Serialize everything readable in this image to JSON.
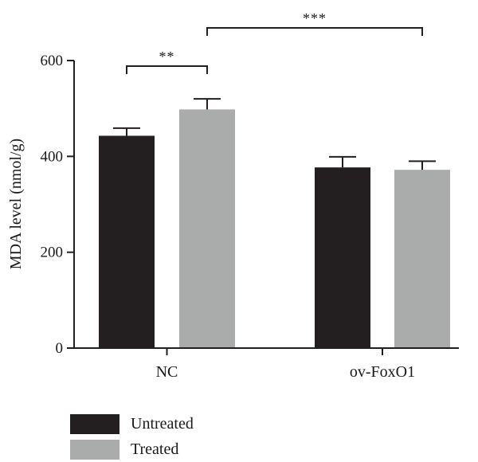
{
  "chart_data": {
    "type": "bar",
    "categories": [
      "NC",
      "ov-FoxO1"
    ],
    "series": [
      {
        "name": "Untreated",
        "values": [
          443,
          377
        ],
        "errors": [
          16,
          22
        ],
        "color": "#231f20"
      },
      {
        "name": "Treated",
        "values": [
          498,
          372
        ],
        "errors": [
          22,
          18
        ],
        "color": "#aaabab"
      }
    ],
    "xlabel": "",
    "ylabel": "MDA level (nmol/g)",
    "ylim": [
      0,
      600
    ],
    "yticks": [
      0,
      200,
      400,
      600
    ],
    "grid": false,
    "legend_position": "bottom-left",
    "significance": [
      {
        "label": "**",
        "from": {
          "category": 0,
          "series": 0
        },
        "to": {
          "category": 0,
          "series": 1
        }
      },
      {
        "label": "***",
        "from": {
          "category": 0,
          "series": 1
        },
        "to": {
          "category": 1,
          "series": 1
        }
      }
    ]
  }
}
